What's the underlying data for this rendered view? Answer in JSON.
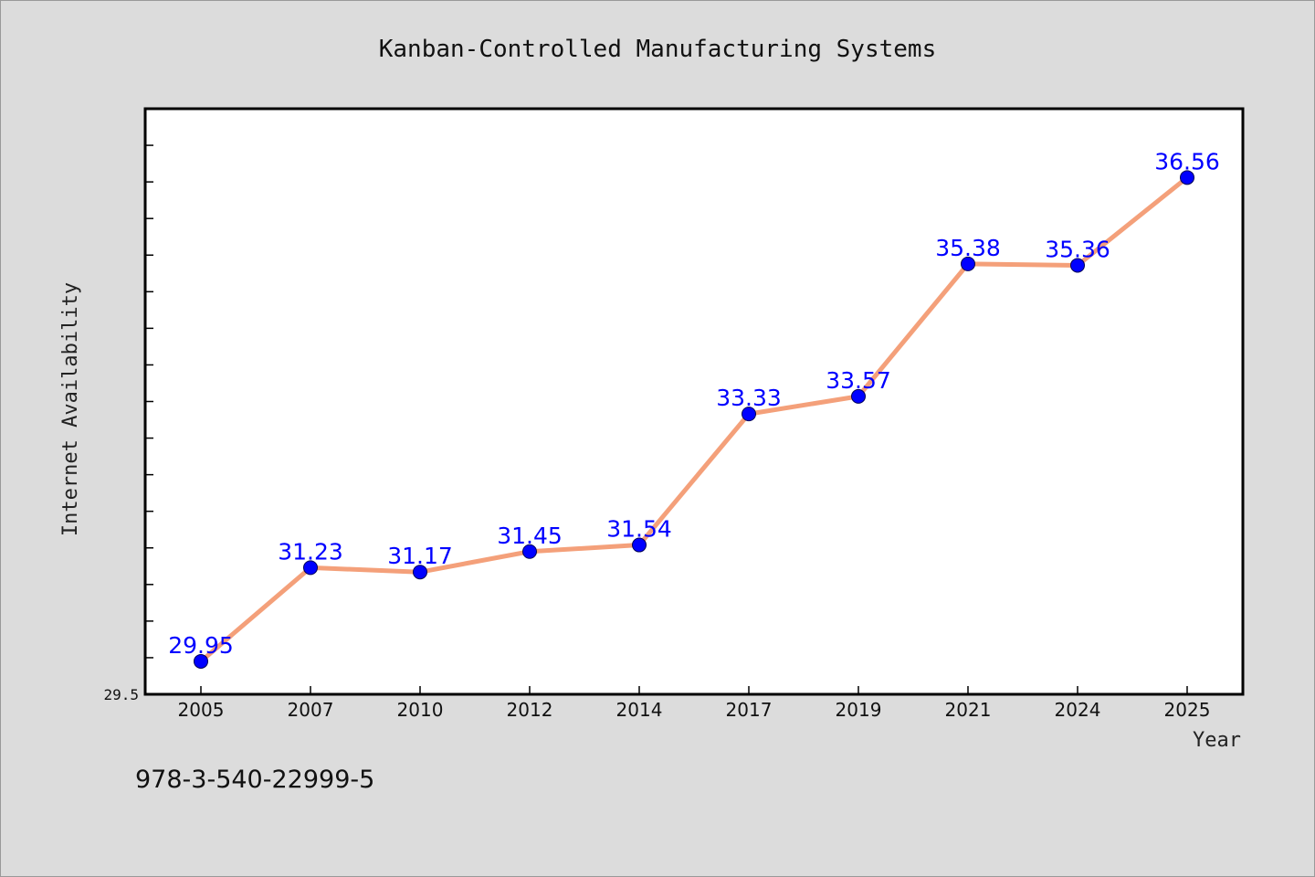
{
  "chart_data": {
    "type": "line",
    "title": "Kanban-Controlled Manufacturing Systems",
    "xlabel": "Year",
    "ylabel": "Internet Availability",
    "categories": [
      "2005",
      "2007",
      "2010",
      "2012",
      "2014",
      "2017",
      "2019",
      "2021",
      "2024",
      "2025"
    ],
    "series": [
      {
        "values": [
          29.95,
          31.23,
          31.17,
          31.45,
          31.54,
          33.33,
          33.57,
          35.38,
          35.36,
          36.56
        ],
        "labels": [
          "29.95",
          "31.23",
          "31.17",
          "31.45",
          "31.54",
          "33.33",
          "33.57",
          "35.38",
          "35.36",
          "36.56"
        ]
      }
    ],
    "ylim": [
      29.5,
      37.5
    ],
    "ytick_label": "29.5",
    "grid": false,
    "line_color": "#f4a07a",
    "marker_color": "#0000ff",
    "label_color": "#0000ff"
  },
  "footer": {
    "isbn": "978-3-540-22999-5"
  },
  "colors": {
    "background": "#dcdcdc",
    "plot_background": "#ffffff"
  }
}
